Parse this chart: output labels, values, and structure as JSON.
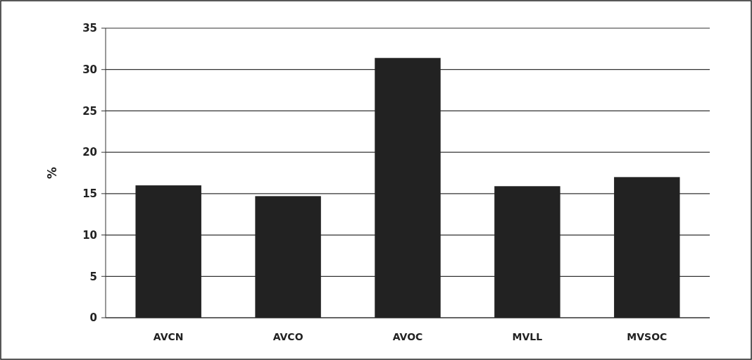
{
  "chart_data": {
    "type": "bar",
    "ylabel": "%",
    "categories": [
      "AVCN",
      "AVCO",
      "AVOC",
      "MVLL",
      "MVSOC"
    ],
    "values": [
      16,
      14.7,
      31.4,
      15.9,
      17
    ],
    "color": "#222222",
    "ylim": [
      0,
      35
    ],
    "yticks": [
      0,
      5,
      10,
      15,
      20,
      25,
      30,
      35
    ],
    "grid": "y"
  }
}
